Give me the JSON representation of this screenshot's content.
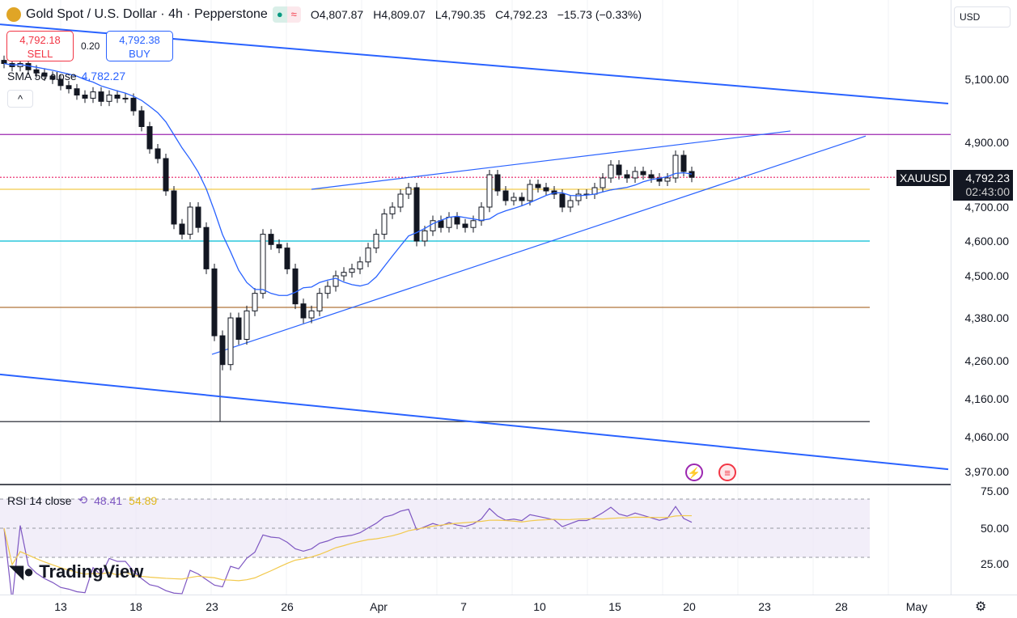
{
  "header": {
    "title": "Gold Spot / U.S. Dollar · 4h · Pepperstone",
    "open": "O4,807.87",
    "high": "H4,809.07",
    "low": "L4,790.35",
    "close": "C4,792.23",
    "change": "−15.73 (−0.33%)",
    "status_icon": "market-open-dot",
    "delay_icon": "≈"
  },
  "trade": {
    "sell_price": "4,792.18",
    "sell_label": "SELL",
    "spread": "0.20",
    "buy_price": "4,792.38",
    "buy_label": "BUY"
  },
  "sma": {
    "label": "SMA 50 close",
    "value": "4,782.27"
  },
  "collapse": "^",
  "currency": "USD",
  "price_axis": [
    "5,100.00",
    "4,900.00",
    "4,700.00",
    "4,600.00",
    "4,500.00",
    "4,380.00",
    "4,260.00",
    "4,160.00",
    "4,060.00",
    "3,970.00"
  ],
  "price_axis_values": [
    5100,
    4900,
    4700,
    4600,
    4500,
    4380,
    4260,
    4160,
    4060,
    3970
  ],
  "symbol_tag": "XAUUSD",
  "last_price": "4,792.23",
  "countdown": "02:43:00",
  "rsi": {
    "label": "RSI 14 close",
    "value1": "48.41",
    "value2": "54.89",
    "axis": [
      "75.00",
      "50.00",
      "25.00"
    ]
  },
  "brand": "TradingView",
  "time_axis": [
    "13",
    "18",
    "23",
    "26",
    "Apr",
    "7",
    "10",
    "15",
    "20",
    "23",
    "28",
    "May"
  ],
  "chart_data": {
    "type": "candlestick",
    "closes": [
      5150,
      5140,
      5150,
      5130,
      5120,
      5110,
      5100,
      5080,
      5070,
      5050,
      5040,
      5060,
      5030,
      5050,
      5040,
      5040,
      5000,
      4950,
      4880,
      4850,
      4750,
      4650,
      4620,
      4700,
      4640,
      4520,
      4330,
      4250,
      4380,
      4320,
      4400,
      4450,
      4620,
      4590,
      4580,
      4520,
      4420,
      4380,
      4400,
      4450,
      4470,
      4500,
      4510,
      4520,
      4540,
      4580,
      4620,
      4680,
      4700,
      4740,
      4760,
      4600,
      4630,
      4660,
      4640,
      4670,
      4650,
      4640,
      4660,
      4700,
      4800,
      4750,
      4720,
      4730,
      4720,
      4770,
      4760,
      4750,
      4740,
      4700,
      4720,
      4740,
      4740,
      4760,
      4790,
      4830,
      4800,
      4790,
      4810,
      4800,
      4790,
      4780,
      4790,
      4860,
      4810,
      4792
    ],
    "low_extreme": {
      "index": 27,
      "price": 4100
    },
    "horizontal_levels": [
      {
        "price": 4925,
        "color": "#9c27b0"
      },
      {
        "price": 4755,
        "color": "#f2c94c"
      },
      {
        "price": 4600,
        "color": "#00bcd4"
      },
      {
        "price": 4410,
        "color": "#b0743a"
      },
      {
        "price": 4100,
        "color": "#131722"
      },
      {
        "price": 4792,
        "color": "#e91e63",
        "style": "dotted"
      }
    ],
    "trend_lines": [
      {
        "from": [
          -0.5,
          5274
        ],
        "to": [
          116.7,
          5023
        ]
      },
      {
        "from": [
          -0.5,
          4224
        ],
        "to": [
          116.7,
          3976
        ]
      },
      {
        "from": [
          38,
          4755
        ],
        "to": [
          97.2,
          4936
        ]
      },
      {
        "from": [
          25.7,
          4278
        ],
        "to": [
          106.5,
          4920
        ]
      }
    ],
    "rsi_period": 14,
    "rsi_bands": [
      30,
      50,
      70
    ]
  }
}
